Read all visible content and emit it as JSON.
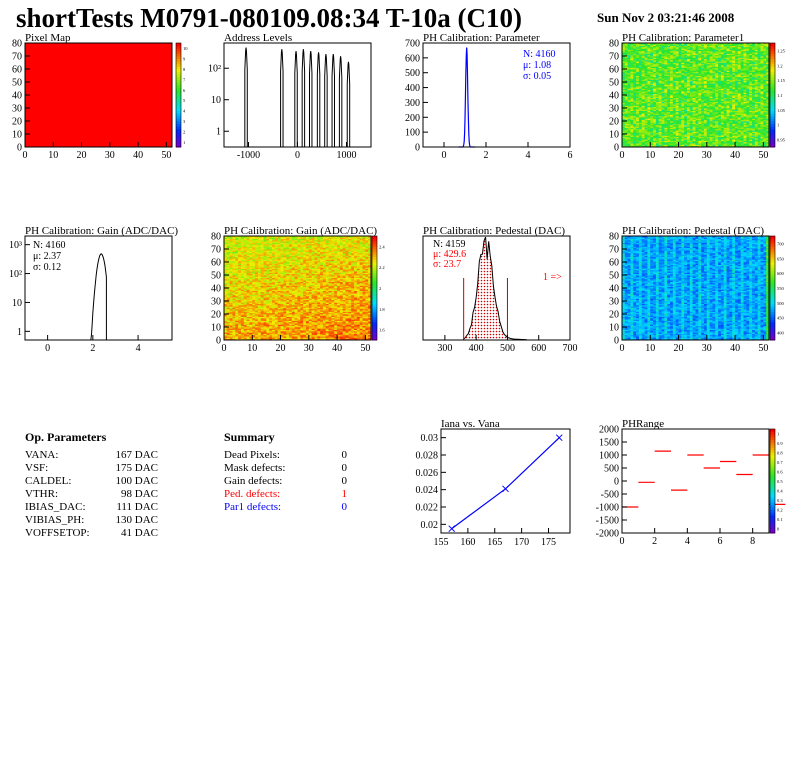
{
  "header": {
    "title": "shortTests M0791-080109.08:34 T-10a (C10)",
    "date": "Sun Nov  2 03:21:46 2008"
  },
  "colors": {
    "red": "#ff0000",
    "blue": "#0000ff",
    "fill_red_hatch": "#cc0000"
  },
  "op_parameters": {
    "heading": "Op. Parameters",
    "rows": [
      {
        "name": "VANA:",
        "value": "167 DAC"
      },
      {
        "name": "VSF:",
        "value": "175 DAC"
      },
      {
        "name": "CALDEL:",
        "value": "100 DAC"
      },
      {
        "name": "VTHR:",
        "value": "98 DAC"
      },
      {
        "name": "IBIAS_DAC:",
        "value": "111 DAC"
      },
      {
        "name": "VIBIAS_PH:",
        "value": "130 DAC"
      },
      {
        "name": "VOFFSETOP:",
        "value": "41 DAC"
      }
    ]
  },
  "summary": {
    "heading": "Summary",
    "rows": [
      {
        "name": "Dead Pixels:",
        "value": "0",
        "color": "#000000"
      },
      {
        "name": "Mask defects:",
        "value": "0",
        "color": "#000000"
      },
      {
        "name": "Gain defects:",
        "value": "0",
        "color": "#000000"
      },
      {
        "name": "Ped. defects:",
        "value": "1",
        "color": "#ff0000"
      },
      {
        "name": "Par1 defects:",
        "value": "0",
        "color": "#0000ff"
      }
    ]
  },
  "chart_data": [
    {
      "type": "heatmap",
      "title": "Pixel Map",
      "xlim": [
        0,
        52
      ],
      "ylim": [
        0,
        80
      ],
      "xticks": [
        "0",
        "10",
        "20",
        "30",
        "40",
        "50"
      ],
      "yticks": [
        "0",
        "10",
        "20",
        "30",
        "40",
        "50",
        "60",
        "70",
        "80"
      ],
      "z_scale": [
        "1",
        "2",
        "3",
        "4",
        "5",
        "6",
        "7",
        "8",
        "9",
        "10"
      ],
      "uniform_value": 10
    },
    {
      "type": "bar",
      "title": "Address Levels",
      "log_y": true,
      "xlim": [
        -1500,
        1500
      ],
      "xticks": [
        "-1000",
        "0",
        "1000"
      ],
      "yticks": [
        "1",
        "10",
        "10²"
      ],
      "peaks": [
        -1050,
        -320,
        -30,
        120,
        270,
        430,
        580,
        730,
        880,
        1040
      ],
      "peak_heights": [
        450,
        400,
        350,
        400,
        350,
        320,
        280,
        280,
        240,
        160
      ]
    },
    {
      "type": "bar",
      "title": "PH Calibration: Parameter",
      "xlim": [
        -1,
        6
      ],
      "xticks": [
        "0",
        "2",
        "4",
        "6"
      ],
      "ylim": [
        0,
        700
      ],
      "yticks": [
        "0",
        "100",
        "200",
        "300",
        "400",
        "500",
        "600",
        "700"
      ],
      "stats": [
        "N: 4160",
        "μ: 1.08",
        "σ: 0.05"
      ],
      "stats_color": "#0000ff",
      "mean": 1.08,
      "sigma": 0.05,
      "peak": 670
    },
    {
      "type": "heatmap",
      "title": "PH Calibration: Parameter1",
      "xlim": [
        0,
        52
      ],
      "ylim": [
        0,
        80
      ],
      "xticks": [
        "0",
        "10",
        "20",
        "30",
        "40",
        "50"
      ],
      "yticks": [
        "0",
        "10",
        "20",
        "30",
        "40",
        "50",
        "60",
        "70",
        "80"
      ],
      "z_scale": [
        "0.95",
        "1",
        "1.05",
        "1.1",
        "1.15",
        "1.2",
        "1.25"
      ]
    },
    {
      "type": "bar",
      "title": "PH Calibration: Gain (ADC/DAC)",
      "log_y": true,
      "xlim": [
        -1,
        5.5
      ],
      "xticks": [
        "0",
        "2",
        "4"
      ],
      "yticks": [
        "1",
        "10",
        "10²",
        "10³"
      ],
      "stats": [
        "N: 4160",
        "μ: 2.37",
        "σ: 0.12"
      ],
      "stats_color": "#000000",
      "mean": 2.37,
      "sigma": 0.12,
      "peak": 480
    },
    {
      "type": "heatmap",
      "title": "PH Calibration: Gain (ADC/DAC)",
      "xlim": [
        0,
        52
      ],
      "ylim": [
        0,
        80
      ],
      "xticks": [
        "0",
        "10",
        "20",
        "30",
        "40",
        "50"
      ],
      "yticks": [
        "0",
        "10",
        "20",
        "30",
        "40",
        "50",
        "60",
        "70",
        "80"
      ],
      "z_scale": [
        "1.6",
        "1.8",
        "2",
        "2.2",
        "2.4"
      ]
    },
    {
      "type": "bar",
      "title": "PH Calibration: Pedestal (DAC)",
      "xlim": [
        230,
        700
      ],
      "xticks": [
        "300",
        "400",
        "500",
        "600",
        "700"
      ],
      "ylim": [
        0,
        75
      ],
      "stats": [
        "N: 4159",
        "μ: 429.6",
        "σ: 23.7"
      ],
      "stats_colors": [
        "#000000",
        "#ff0000",
        "#ff0000"
      ],
      "overflow_label": "1 =>",
      "mean": 429.6,
      "sigma": 23.7,
      "peak": 70,
      "cut_lines": [
        360,
        500
      ]
    },
    {
      "type": "heatmap",
      "title": "PH Calibration: Pedestal (DAC)",
      "xlim": [
        0,
        52
      ],
      "ylim": [
        0,
        80
      ],
      "xticks": [
        "0",
        "10",
        "20",
        "30",
        "40",
        "50"
      ],
      "yticks": [
        "0",
        "10",
        "20",
        "30",
        "40",
        "50",
        "60",
        "70",
        "80"
      ],
      "z_scale": [
        "400",
        "450",
        "500",
        "550",
        "600",
        "650",
        "700"
      ]
    },
    {
      "type": "line",
      "title": "Iana vs. Vana",
      "xlim": [
        155,
        179
      ],
      "xticks": [
        "155",
        "160",
        "165",
        "170",
        "175"
      ],
      "ylim": [
        0.019,
        0.031
      ],
      "yticks": [
        "0.02",
        "0.022",
        "0.024",
        "0.026",
        "0.028",
        "0.03"
      ],
      "x": [
        157,
        167,
        177
      ],
      "y": [
        0.0195,
        0.0241,
        0.03
      ]
    },
    {
      "type": "heatmap",
      "title": "PHRange",
      "xlim": [
        0,
        9
      ],
      "xticks": [
        "0",
        "2",
        "4",
        "6",
        "8"
      ],
      "ylim": [
        -2000,
        2000
      ],
      "yticks": [
        "2000",
        "1500",
        "1000",
        "500",
        "0",
        "-500",
        "-1000",
        "-1500",
        "-2000"
      ],
      "z_scale": [
        "0",
        "0.1",
        "0.2",
        "0.3",
        "0.4",
        "0.5",
        "0.6",
        "0.7",
        "0.8",
        "0.9",
        "1"
      ],
      "segments_y": [
        -1000,
        -50,
        1150,
        -350,
        1000,
        500,
        750,
        250,
        1000,
        -900
      ]
    }
  ]
}
